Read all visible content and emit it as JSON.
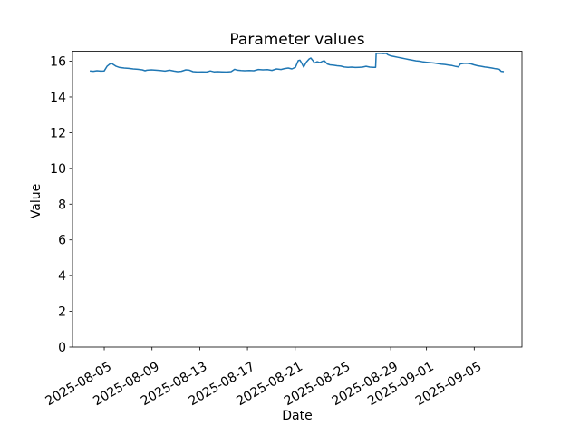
{
  "chart_data": {
    "type": "line",
    "title": "Parameter values",
    "xlabel": "Date",
    "ylabel": "Value",
    "grid": false,
    "legend": null,
    "x_unit": "days since 2025-08-01",
    "xlim": [
      1.34,
      39.0
    ],
    "ylim": [
      0,
      16.56
    ],
    "yticks": [
      0,
      2,
      4,
      6,
      8,
      10,
      12,
      14,
      16
    ],
    "xticks": [
      {
        "day": 4,
        "label": "2025-08-05"
      },
      {
        "day": 8,
        "label": "2025-08-09"
      },
      {
        "day": 12,
        "label": "2025-08-13"
      },
      {
        "day": 16,
        "label": "2025-08-17"
      },
      {
        "day": 20,
        "label": "2025-08-21"
      },
      {
        "day": 24,
        "label": "2025-08-25"
      },
      {
        "day": 28,
        "label": "2025-08-29"
      },
      {
        "day": 31,
        "label": "2025-09-01"
      },
      {
        "day": 35,
        "label": "2025-09-05"
      }
    ],
    "series": [
      {
        "name": "Parameter values",
        "color": "#1f77b4",
        "points": [
          [
            2.79,
            15.46
          ],
          [
            3.09,
            15.44
          ],
          [
            3.39,
            15.47
          ],
          [
            3.7,
            15.45
          ],
          [
            4.0,
            15.46
          ],
          [
            4.23,
            15.72
          ],
          [
            4.46,
            15.84
          ],
          [
            4.61,
            15.88
          ],
          [
            4.76,
            15.82
          ],
          [
            4.99,
            15.72
          ],
          [
            5.29,
            15.65
          ],
          [
            5.67,
            15.62
          ],
          [
            6.05,
            15.6
          ],
          [
            6.43,
            15.57
          ],
          [
            6.81,
            15.55
          ],
          [
            7.19,
            15.52
          ],
          [
            7.42,
            15.47
          ],
          [
            7.57,
            15.5
          ],
          [
            7.95,
            15.52
          ],
          [
            8.33,
            15.5
          ],
          [
            8.71,
            15.48
          ],
          [
            9.09,
            15.45
          ],
          [
            9.47,
            15.5
          ],
          [
            9.85,
            15.45
          ],
          [
            10.15,
            15.42
          ],
          [
            10.46,
            15.44
          ],
          [
            10.84,
            15.52
          ],
          [
            11.14,
            15.5
          ],
          [
            11.44,
            15.42
          ],
          [
            11.82,
            15.4
          ],
          [
            12.2,
            15.41
          ],
          [
            12.58,
            15.4
          ],
          [
            12.89,
            15.46
          ],
          [
            13.19,
            15.41
          ],
          [
            13.49,
            15.42
          ],
          [
            13.87,
            15.41
          ],
          [
            14.25,
            15.4
          ],
          [
            14.63,
            15.42
          ],
          [
            14.93,
            15.55
          ],
          [
            15.16,
            15.5
          ],
          [
            15.47,
            15.48
          ],
          [
            15.77,
            15.47
          ],
          [
            16.15,
            15.48
          ],
          [
            16.53,
            15.47
          ],
          [
            16.91,
            15.54
          ],
          [
            17.29,
            15.52
          ],
          [
            17.67,
            15.53
          ],
          [
            18.05,
            15.49
          ],
          [
            18.43,
            15.57
          ],
          [
            18.81,
            15.54
          ],
          [
            19.11,
            15.59
          ],
          [
            19.42,
            15.62
          ],
          [
            19.72,
            15.57
          ],
          [
            20.02,
            15.66
          ],
          [
            20.25,
            16.03
          ],
          [
            20.4,
            16.06
          ],
          [
            20.56,
            15.88
          ],
          [
            20.71,
            15.68
          ],
          [
            20.94,
            15.95
          ],
          [
            21.16,
            16.12
          ],
          [
            21.31,
            16.18
          ],
          [
            21.47,
            16.05
          ],
          [
            21.62,
            15.9
          ],
          [
            21.85,
            15.97
          ],
          [
            22.07,
            15.92
          ],
          [
            22.3,
            16.0
          ],
          [
            22.45,
            16.02
          ],
          [
            22.68,
            15.85
          ],
          [
            22.91,
            15.8
          ],
          [
            23.21,
            15.78
          ],
          [
            23.52,
            15.75
          ],
          [
            23.82,
            15.73
          ],
          [
            24.12,
            15.68
          ],
          [
            24.43,
            15.66
          ],
          [
            24.73,
            15.67
          ],
          [
            25.03,
            15.65
          ],
          [
            25.34,
            15.66
          ],
          [
            25.64,
            15.67
          ],
          [
            25.94,
            15.72
          ],
          [
            26.25,
            15.67
          ],
          [
            26.55,
            15.66
          ],
          [
            26.74,
            15.66
          ],
          [
            26.78,
            16.44
          ],
          [
            27.08,
            16.45
          ],
          [
            27.39,
            16.43
          ],
          [
            27.62,
            16.44
          ],
          [
            27.77,
            16.36
          ],
          [
            28.0,
            16.3
          ],
          [
            28.3,
            16.26
          ],
          [
            28.6,
            16.22
          ],
          [
            28.91,
            16.18
          ],
          [
            29.21,
            16.14
          ],
          [
            29.51,
            16.1
          ],
          [
            29.82,
            16.06
          ],
          [
            30.12,
            16.02
          ],
          [
            30.42,
            16.0
          ],
          [
            30.73,
            15.96
          ],
          [
            31.03,
            15.94
          ],
          [
            31.33,
            15.92
          ],
          [
            31.64,
            15.9
          ],
          [
            31.94,
            15.87
          ],
          [
            32.24,
            15.84
          ],
          [
            32.55,
            15.82
          ],
          [
            32.85,
            15.79
          ],
          [
            33.15,
            15.76
          ],
          [
            33.46,
            15.71
          ],
          [
            33.68,
            15.69
          ],
          [
            33.84,
            15.85
          ],
          [
            34.14,
            15.88
          ],
          [
            34.44,
            15.88
          ],
          [
            34.75,
            15.85
          ],
          [
            34.98,
            15.8
          ],
          [
            35.28,
            15.75
          ],
          [
            35.58,
            15.72
          ],
          [
            35.89,
            15.68
          ],
          [
            36.19,
            15.65
          ],
          [
            36.49,
            15.62
          ],
          [
            36.8,
            15.58
          ],
          [
            37.1,
            15.55
          ],
          [
            37.25,
            15.44
          ],
          [
            37.48,
            15.42
          ]
        ]
      }
    ]
  }
}
